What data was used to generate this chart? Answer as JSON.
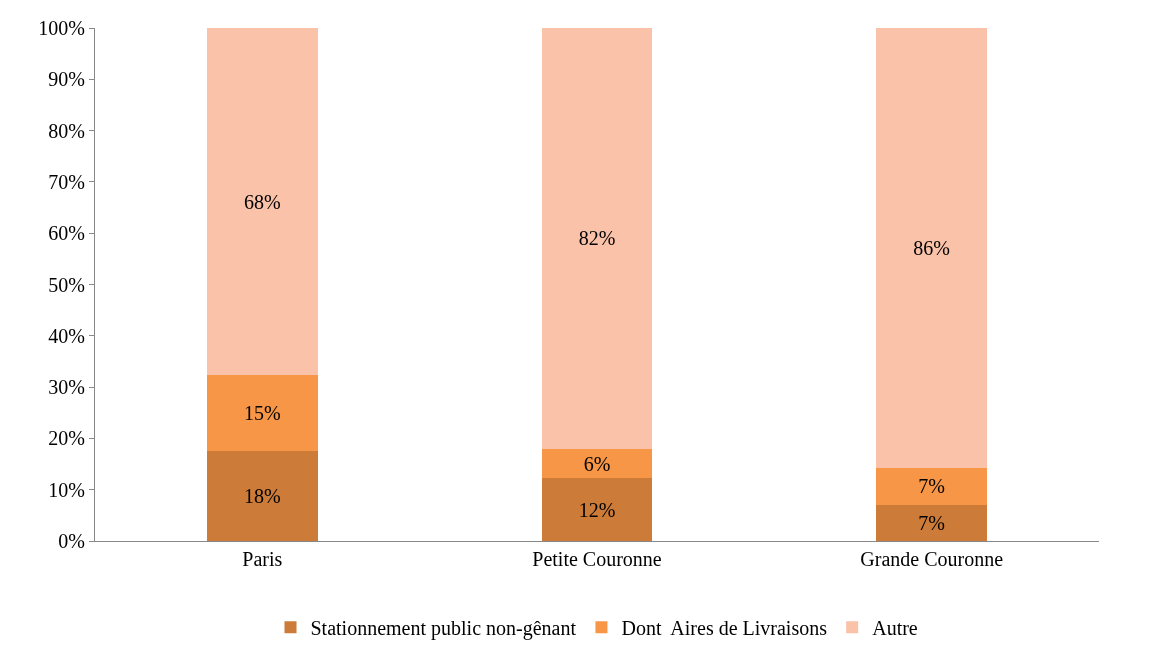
{
  "chart_data": {
    "type": "bar",
    "stacked": true,
    "categories": [
      "Paris",
      "Petite Couronne",
      "Grande Couronne"
    ],
    "series": [
      {
        "name": "Stationnement public non-gênant",
        "color": "#cc7b38",
        "values": [
          17.6,
          12.2,
          7.1
        ],
        "value_labels": [
          "18%",
          "12%",
          "7%"
        ]
      },
      {
        "name": "Dont  Aires de Livraisons",
        "color": "#f79646",
        "values": [
          14.7,
          5.8,
          7.2
        ],
        "value_labels": [
          "15%",
          "6%",
          "7%"
        ]
      },
      {
        "name": "Autre",
        "color": "#fac2a8",
        "values": [
          67.7,
          82.0,
          85.7
        ],
        "value_labels": [
          "68%",
          "82%",
          "86%"
        ]
      }
    ],
    "ylim": [
      0,
      100
    ],
    "yticks": [
      {
        "value": 0,
        "label": "0%"
      },
      {
        "value": 10,
        "label": "10%"
      },
      {
        "value": 20,
        "label": "20%"
      },
      {
        "value": 30,
        "label": "30%"
      },
      {
        "value": 40,
        "label": "40%"
      },
      {
        "value": 50,
        "label": "50%"
      },
      {
        "value": 60,
        "label": "60%"
      },
      {
        "value": 70,
        "label": "70%"
      },
      {
        "value": 80,
        "label": "80%"
      },
      {
        "value": 90,
        "label": "90%"
      },
      {
        "value": 100,
        "label": "100%"
      }
    ],
    "legend": "bottom"
  }
}
